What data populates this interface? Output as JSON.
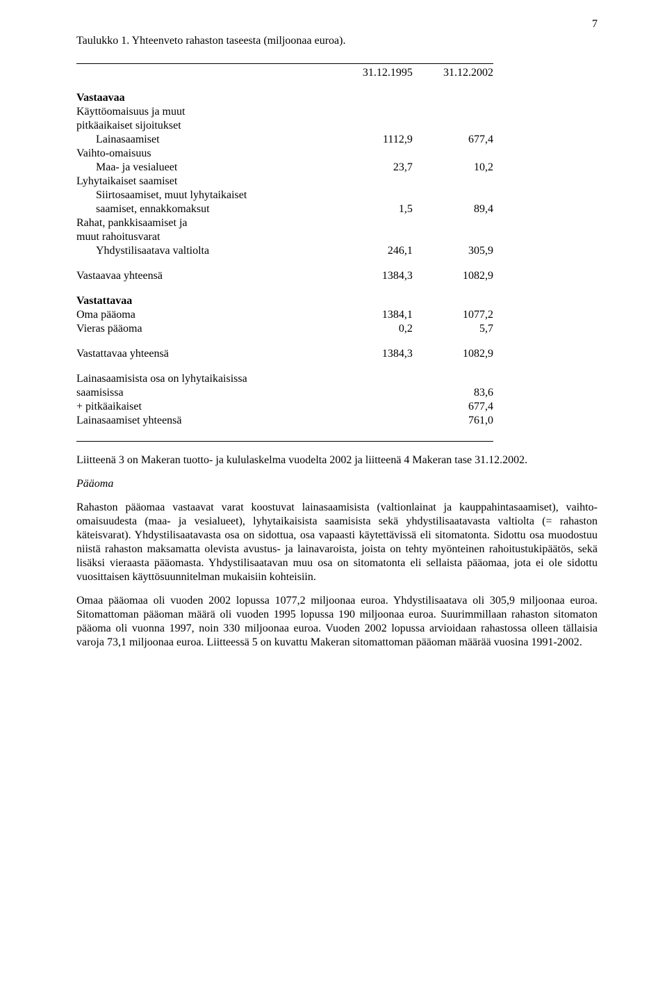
{
  "page_number": "7",
  "caption": "Taulukko 1. Yhteenveto rahaston taseesta (miljoonaa euroa).",
  "headers": {
    "c1": "31.12.1995",
    "c2": "31.12.2002"
  },
  "vastaavaa": {
    "title": "Vastaavaa",
    "r1": {
      "label": "Käyttöomaisuus ja muut"
    },
    "r2": {
      "label": "pitkäaikaiset sijoitukset"
    },
    "r3": {
      "label": "Lainasaamiset",
      "v1": "1112,9",
      "v2": "677,4"
    },
    "r4": {
      "label": "Vaihto-omaisuus"
    },
    "r5": {
      "label": "Maa- ja vesialueet",
      "v1": "23,7",
      "v2": "10,2"
    },
    "r6": {
      "label": "Lyhytaikaiset saamiset"
    },
    "r7": {
      "label": "Siirtosaamiset, muut lyhytaikaiset"
    },
    "r8": {
      "label": "saamiset, ennakkomaksut",
      "v1": "1,5",
      "v2": "89,4"
    },
    "r9": {
      "label": "Rahat, pankkisaamiset ja"
    },
    "r10": {
      "label": "muut rahoitusvarat"
    },
    "r11": {
      "label": "Yhdystilisaatava valtiolta",
      "v1": "246,1",
      "v2": "305,9"
    },
    "total": {
      "label": "Vastaavaa yhteensä",
      "v1": "1384,3",
      "v2": "1082,9"
    }
  },
  "vastattavaa": {
    "title": "Vastattavaa",
    "r1": {
      "label": "Oma pääoma",
      "v1": "1384,1",
      "v2": "1077,2"
    },
    "r2": {
      "label": "Vieras pääoma",
      "v1": "0,2",
      "v2": "5,7"
    },
    "total": {
      "label": "Vastattavaa yhteensä",
      "v1": "1384,3",
      "v2": "1082,9"
    }
  },
  "extra": {
    "r1": {
      "label": "Lainasaamisista osa on lyhytaikaisissa"
    },
    "r2": {
      "label": "saamisissa",
      "v2": "83,6"
    },
    "r3": {
      "label": "+ pitkäaikaiset",
      "v2": "677,4"
    },
    "r4": {
      "label": "Lainasaamiset yhteensä",
      "v2": "761,0"
    }
  },
  "para1": "Liitteenä 3 on Makeran tuotto- ja kululaskelma vuodelta 2002 ja liitteenä 4 Makeran tase 31.12.2002.",
  "subheading": "Pääoma",
  "para2": "Rahaston pääomaa vastaavat varat koostuvat lainasaamisista (valtionlainat ja kauppahintasaamiset), vaihto-omaisuudesta (maa- ja vesialueet), lyhytaikaisista saamisista sekä yhdystilisaatavasta valtiolta (= rahaston käteisvarat). Yhdystilisaatavasta osa on sidottua, osa vapaasti käytettävissä eli sitomatonta. Sidottu osa muodostuu niistä rahaston maksamatta olevista avustus- ja lainavaroista, joista on tehty myönteinen rahoitustukipäätös, sekä lisäksi vieraasta pääomasta. Yhdystilisaatavan muu osa on sitomatonta eli sellaista pääomaa, jota ei ole sidottu vuosittaisen käyttösuunnitelman mukaisiin kohteisiin.",
  "para3": "Omaa pääomaa oli vuoden 2002 lopussa 1077,2 miljoonaa euroa. Yhdystilisaatava oli 305,9 miljoonaa euroa. Sitomattoman pääoman määrä oli vuoden 1995 lopussa 190 miljoonaa euroa. Suurimmillaan rahaston sitomaton pääoma oli vuonna 1997, noin 330 miljoonaa euroa. Vuoden 2002 lopussa arvioidaan rahastossa olleen tällaisia varoja 73,1 miljoonaa euroa. Liitteessä 5 on kuvattu Makeran sitomattoman pääoman määrää vuosina 1991-2002."
}
